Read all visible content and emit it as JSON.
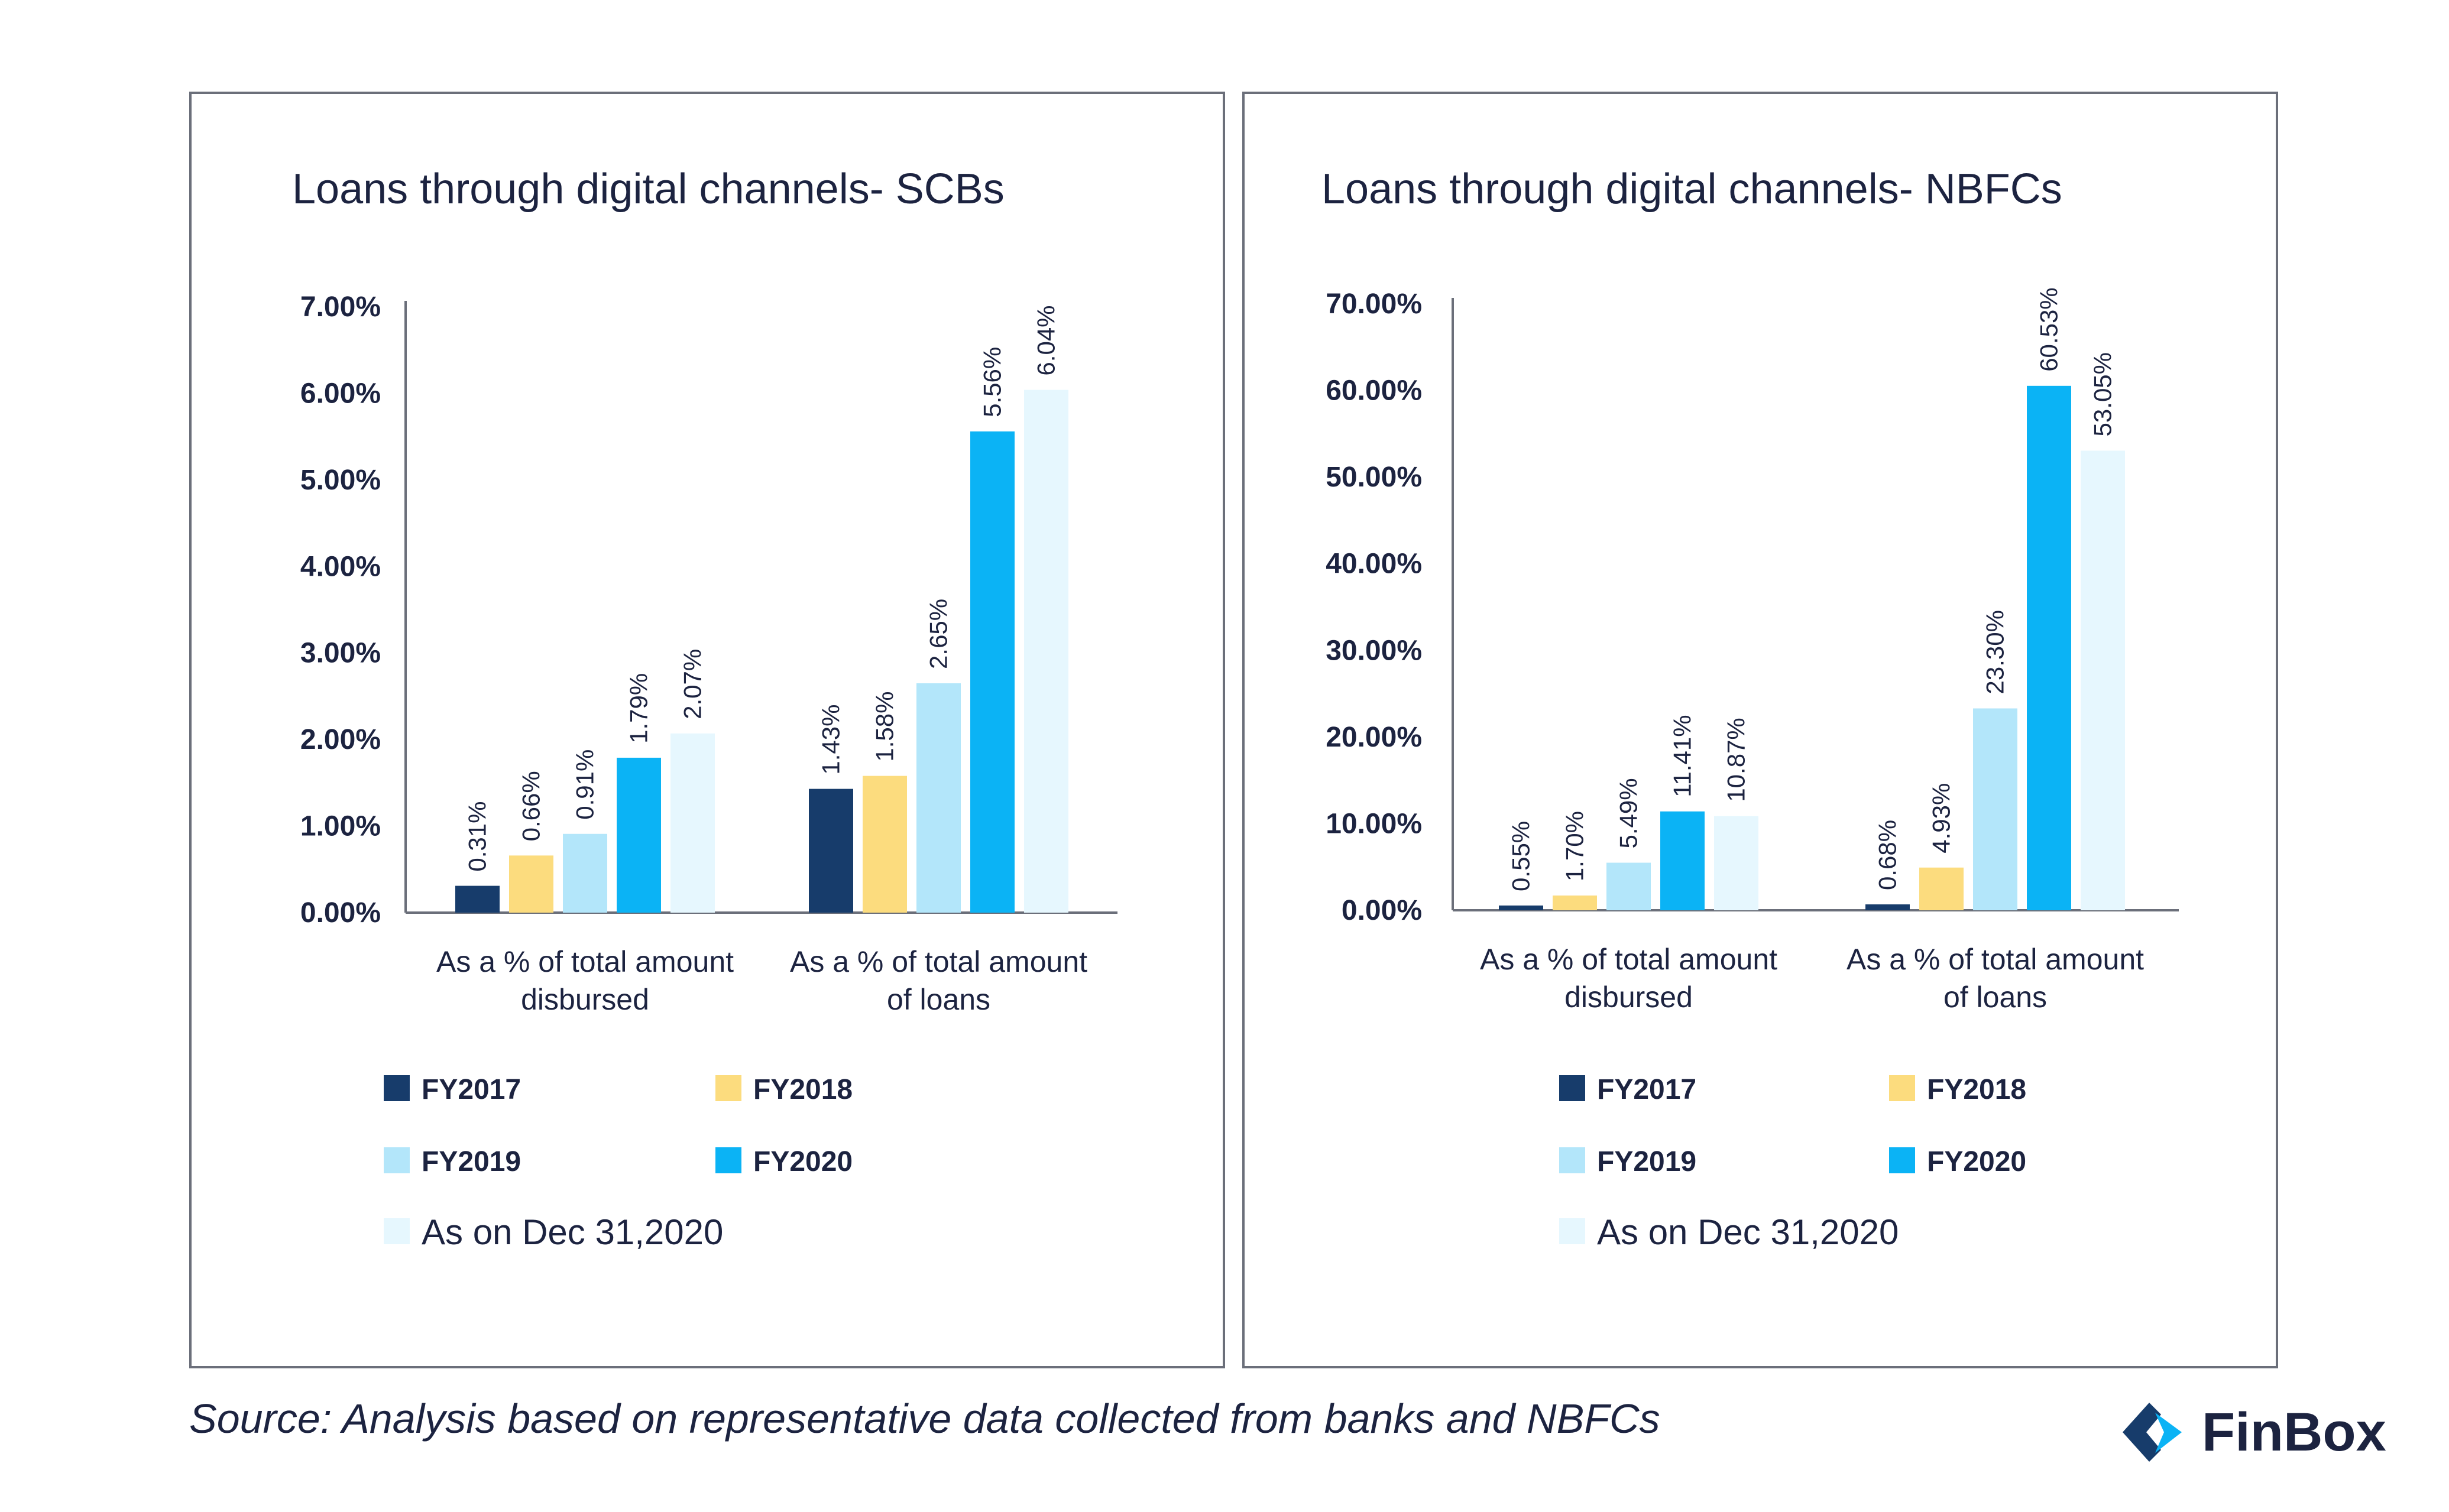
{
  "charts": [
    {
      "id": "scb",
      "chart_data": {
        "type": "bar",
        "title": "Loans through digital channels- SCBs",
        "categories": [
          [
            "As a % of total amount",
            "disbursed"
          ],
          [
            "As a % of total amount",
            "of loans"
          ]
        ],
        "series": [
          {
            "name": "FY2017",
            "values": [
              0.31,
              1.43
            ],
            "labels": [
              "0.31%",
              "1.43%"
            ],
            "color": "#173c6b"
          },
          {
            "name": "FY2018",
            "values": [
              0.66,
              1.58
            ],
            "labels": [
              "0.66%",
              "1.58%"
            ],
            "color": "#fcdc7e"
          },
          {
            "name": "FY2019",
            "values": [
              0.91,
              2.65
            ],
            "labels": [
              "0.91%",
              "2.65%"
            ],
            "color": "#b3e6fa"
          },
          {
            "name": "FY2020",
            "values": [
              1.79,
              5.56
            ],
            "labels": [
              "1.79%",
              "5.56%"
            ],
            "color": "#0bb3f5"
          },
          {
            "name": "As on Dec 31,2020",
            "values": [
              2.07,
              6.04
            ],
            "labels": [
              "2.07%",
              "6.04%"
            ],
            "color": "#e6f7fe"
          }
        ],
        "ylim": [
          0,
          7
        ],
        "yticks": [
          "0.00%",
          "1.00%",
          "2.00%",
          "3.00%",
          "4.00%",
          "5.00%",
          "6.00%",
          "7.00%"
        ],
        "grid": false,
        "legend_position": "bottom"
      }
    },
    {
      "id": "nbfc",
      "chart_data": {
        "type": "bar",
        "title": "Loans through digital channels- NBFCs",
        "categories": [
          [
            "As a % of total amount",
            "disbursed"
          ],
          [
            "As a % of total amount",
            "of loans"
          ]
        ],
        "series": [
          {
            "name": "FY2017",
            "values": [
              0.55,
              0.68
            ],
            "labels": [
              "0.55%",
              "0.68%"
            ],
            "color": "#173c6b"
          },
          {
            "name": "FY2018",
            "values": [
              1.7,
              4.93
            ],
            "labels": [
              "1.70%",
              "4.93%"
            ],
            "color": "#fcdc7e"
          },
          {
            "name": "FY2019",
            "values": [
              5.49,
              23.3
            ],
            "labels": [
              "5.49%",
              "23.30%"
            ],
            "color": "#b3e6fa"
          },
          {
            "name": "FY2020",
            "values": [
              11.41,
              60.53
            ],
            "labels": [
              "11.41%",
              "60.53%"
            ],
            "color": "#0bb3f5"
          },
          {
            "name": "As on Dec 31,2020",
            "values": [
              10.87,
              53.05
            ],
            "labels": [
              "10.87%",
              "53.05%"
            ],
            "color": "#e6f7fe"
          }
        ],
        "ylim": [
          0,
          70
        ],
        "yticks": [
          "0.00%",
          "10.00%",
          "20.00%",
          "30.00%",
          "40.00%",
          "50.00%",
          "60.00%",
          "70.00%"
        ],
        "grid": false,
        "legend_position": "bottom"
      }
    }
  ],
  "footer": {
    "source": "Source: Analysis based on representative data collected from banks and NBFCs",
    "brand": "FinBox"
  },
  "icons": {
    "brand_logo": "finbox-logo-icon"
  }
}
